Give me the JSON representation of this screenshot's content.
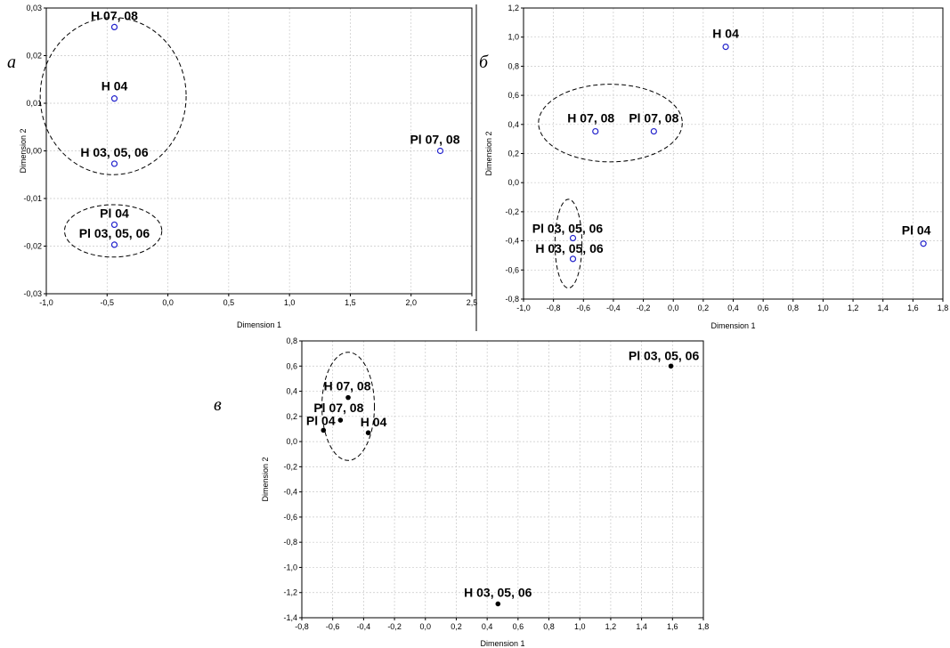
{
  "colors": {
    "open_marker": "#2222cc",
    "filled_marker": "#000000",
    "grid": "#c8c8c8"
  },
  "chart_data": [
    {
      "type": "scatter",
      "panel_letter": "а",
      "xlabel": "Dimension 1",
      "ylabel": "Dimension 2",
      "xlim": [
        -1.0,
        2.5
      ],
      "ylim": [
        -0.03,
        0.03
      ],
      "xticks": [
        "-1,0",
        "-0,5",
        "0,0",
        "0,5",
        "1,0",
        "1,5",
        "2,0",
        "2,5"
      ],
      "yticks": [
        "-0,03",
        "-0,02",
        "-0,01",
        "0,00",
        "0,01",
        "0,02",
        "0,03"
      ],
      "grid": true,
      "marker": "open-circle",
      "points": [
        {
          "label": "H 07, 08",
          "x": -0.44,
          "y": 0.026
        },
        {
          "label": "H 04",
          "x": -0.44,
          "y": 0.011
        },
        {
          "label": "H 03, 05, 06",
          "x": -0.44,
          "y": -0.0027
        },
        {
          "label": "Pl 07, 08",
          "x": 2.24,
          "y": 0.0
        },
        {
          "label": "Pl 04",
          "x": -0.44,
          "y": -0.0155
        },
        {
          "label": "Pl 03, 05, 06",
          "x": -0.44,
          "y": -0.0197
        }
      ],
      "groups": [
        {
          "cx": -0.45,
          "cy": 0.0115,
          "rx": 0.6,
          "ry": 0.0165
        },
        {
          "cx": -0.45,
          "cy": -0.0168,
          "rx": 0.4,
          "ry": 0.0055
        }
      ]
    },
    {
      "type": "scatter",
      "panel_letter": "б",
      "xlabel": "Dimension 1",
      "ylabel": "Dimension 2",
      "xlim": [
        -1.0,
        1.8
      ],
      "ylim": [
        -0.9,
        1.2
      ],
      "xticks": [
        "-1,0",
        "-0,8",
        "-0,6",
        "-0,4",
        "-0,2",
        "0,0",
        "0,2",
        "0,4",
        "0,6",
        "0,8",
        "1,0",
        "1,2",
        "1,4",
        "1,6",
        "1,8"
      ],
      "yticks": [
        "-0,8",
        "-0,6",
        "-0,4",
        "-0,2",
        "0,0",
        "0,2",
        "0,4",
        "0,6",
        "0,8",
        "1,0",
        "1,2"
      ],
      "grid": true,
      "marker": "open-circle",
      "points": [
        {
          "label": "H 04",
          "x": 0.35,
          "y": 0.92
        },
        {
          "label": "H 07, 08",
          "x": -0.52,
          "y": 0.31
        },
        {
          "label": "Pl 07, 08",
          "x": -0.13,
          "y": 0.31
        },
        {
          "label": "Pl 03, 05, 06",
          "x": -0.67,
          "y": -0.46
        },
        {
          "label": "H 03, 05, 06",
          "x": -0.67,
          "y": -0.61
        },
        {
          "label": "Pl 04",
          "x": 1.67,
          "y": -0.5
        }
      ],
      "groups": [
        {
          "cx": -0.42,
          "cy": 0.37,
          "rx": 0.48,
          "ry": 0.28
        },
        {
          "cx": -0.7,
          "cy": -0.5,
          "rx": 0.09,
          "ry": 0.32
        }
      ]
    },
    {
      "type": "scatter",
      "panel_letter": "в",
      "xlabel": "Dimension 1",
      "ylabel": "Dimension 2",
      "xlim": [
        -0.8,
        1.8
      ],
      "ylim": [
        -1.4,
        0.8
      ],
      "xticks": [
        "-0,8",
        "-0,6",
        "-0,4",
        "-0,2",
        "0,0",
        "0,2",
        "0,4",
        "0,6",
        "0,8",
        "1,0",
        "1,2",
        "1,4",
        "1,6",
        "1,8"
      ],
      "yticks": [
        "-1,4",
        "-1,2",
        "-1,0",
        "-0,8",
        "-0,6",
        "-0,4",
        "-0,2",
        "0,0",
        "0,2",
        "0,4",
        "0,6",
        "0,8"
      ],
      "grid": true,
      "marker": "filled-circle",
      "points": [
        {
          "label": "Pl 03, 05, 06",
          "x": 1.59,
          "y": 0.6
        },
        {
          "label": "H 07, 08",
          "x": -0.5,
          "y": 0.35
        },
        {
          "label": "Pl 07, 08",
          "x": -0.55,
          "y": 0.17
        },
        {
          "label": "Pl 04",
          "x": -0.66,
          "y": 0.09
        },
        {
          "label": "H 04",
          "x": -0.37,
          "y": 0.07
        },
        {
          "label": "H 03, 05, 06",
          "x": 0.47,
          "y": -1.29
        }
      ],
      "groups": [
        {
          "cx": -0.5,
          "cy": 0.28,
          "rx": 0.17,
          "ry": 0.43
        }
      ]
    }
  ]
}
